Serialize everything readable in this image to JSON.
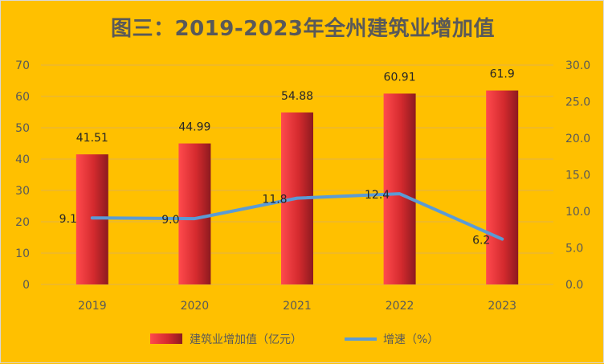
{
  "chart_data": {
    "type": "bar",
    "title": "图三：2019-2023年全州建筑业增加值",
    "categories": [
      "2019",
      "2020",
      "2021",
      "2022",
      "2023"
    ],
    "series": [
      {
        "name": "建筑业增加值（亿元）",
        "type": "bar",
        "axis": "left",
        "values": [
          41.51,
          44.99,
          54.88,
          60.91,
          61.9
        ],
        "labels": [
          "41.51",
          "44.99",
          "54.88",
          "60.91",
          "61.9"
        ],
        "color": "#e8262a"
      },
      {
        "name": "增速（%）",
        "type": "line",
        "axis": "right",
        "values": [
          9.1,
          9.0,
          11.8,
          12.4,
          6.2
        ],
        "labels": [
          "9.1",
          "9.0",
          "11.8",
          "12.4",
          "6.2"
        ],
        "color": "#5b9bd5"
      }
    ],
    "y_left": {
      "ylim": [
        0,
        70
      ],
      "ticks": [
        "0",
        "10",
        "20",
        "30",
        "40",
        "50",
        "60",
        "70"
      ]
    },
    "y_right": {
      "ylim": [
        0,
        30
      ],
      "ticks": [
        "0.0",
        "5.0",
        "10.0",
        "15.0",
        "20.0",
        "25.0",
        "30.0"
      ]
    },
    "grid": true,
    "legend_position": "bottom"
  }
}
